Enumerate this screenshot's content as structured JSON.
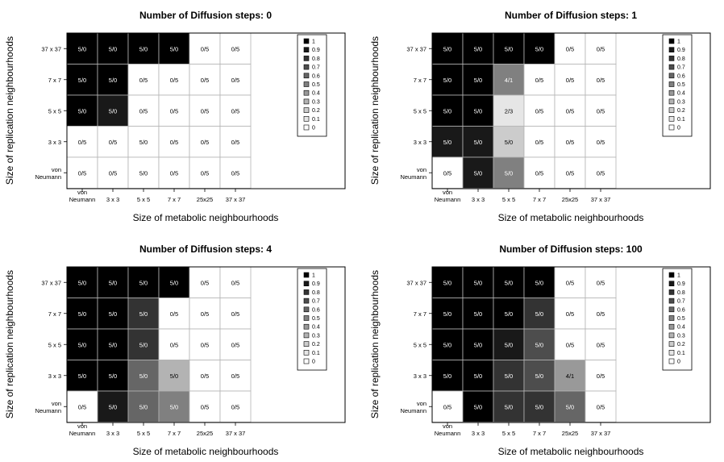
{
  "chart_data": [
    {
      "type": "heatmap",
      "title": "Number of Diffusion steps: 0",
      "xlabel": "Size of metabolic neighbourhoods",
      "ylabel": "Size of replication neighbourhoods",
      "x_categories": [
        "von\nNeumann",
        "3 x 3",
        "5 x 5",
        "7 x 7",
        "25x25",
        "37 x 37"
      ],
      "y_categories": [
        "37 x 37",
        "7 x 7",
        "5 x 5",
        "3 x 3",
        "von\nNeumann"
      ],
      "cells": [
        [
          {
            "label": "5/0",
            "value": 1
          },
          {
            "label": "5/0",
            "value": 1
          },
          {
            "label": "5/0",
            "value": 1
          },
          {
            "label": "5/0",
            "value": 1
          },
          {
            "label": "0/5",
            "value": 0
          },
          {
            "label": "0/5",
            "value": 0
          }
        ],
        [
          {
            "label": "5/0",
            "value": 1
          },
          {
            "label": "5/0",
            "value": 1
          },
          {
            "label": "0/5",
            "value": 0
          },
          {
            "label": "0/5",
            "value": 0
          },
          {
            "label": "0/5",
            "value": 0
          },
          {
            "label": "0/5",
            "value": 0
          }
        ],
        [
          {
            "label": "5/0",
            "value": 1
          },
          {
            "label": "5/0",
            "value": 0.9
          },
          {
            "label": "0/5",
            "value": 0
          },
          {
            "label": "0/5",
            "value": 0
          },
          {
            "label": "0/5",
            "value": 0
          },
          {
            "label": "0/5",
            "value": 0
          }
        ],
        [
          {
            "label": "0/5",
            "value": 0
          },
          {
            "label": "0/5",
            "value": 0
          },
          {
            "label": "5/0",
            "value": 0
          },
          {
            "label": "0/5",
            "value": 0
          },
          {
            "label": "0/5",
            "value": 0
          },
          {
            "label": "0/5",
            "value": 0
          }
        ],
        [
          {
            "label": "0/5",
            "value": 0
          },
          {
            "label": "0/5",
            "value": 0
          },
          {
            "label": "5/0",
            "value": 0
          },
          {
            "label": "0/5",
            "value": 0
          },
          {
            "label": "0/5",
            "value": 0
          },
          {
            "label": "0/5",
            "value": 0
          }
        ]
      ],
      "legend": [
        "1",
        "0.9",
        "0.8",
        "0.7",
        "0.6",
        "0.5",
        "0.4",
        "0.3",
        "0.2",
        "0.1",
        "0"
      ]
    },
    {
      "type": "heatmap",
      "title": "Number of Diffusion steps: 1",
      "xlabel": "Size of metabolic neighbourhoods",
      "ylabel": "Size of replication neighbourhoods",
      "x_categories": [
        "von\nNeumann",
        "3 x 3",
        "5 x 5",
        "7 x 7",
        "25x25",
        "37 x 37"
      ],
      "y_categories": [
        "37 x 37",
        "7 x 7",
        "5 x 5",
        "3 x 3",
        "von\nNeumann"
      ],
      "cells": [
        [
          {
            "label": "5/0",
            "value": 1
          },
          {
            "label": "5/0",
            "value": 1
          },
          {
            "label": "5/0",
            "value": 1
          },
          {
            "label": "5/0",
            "value": 1
          },
          {
            "label": "0/5",
            "value": 0
          },
          {
            "label": "0/5",
            "value": 0
          }
        ],
        [
          {
            "label": "5/0",
            "value": 1
          },
          {
            "label": "5/0",
            "value": 1
          },
          {
            "label": "4/1",
            "value": 0.5
          },
          {
            "label": "0/5",
            "value": 0
          },
          {
            "label": "0/5",
            "value": 0
          },
          {
            "label": "0/5",
            "value": 0
          }
        ],
        [
          {
            "label": "5/0",
            "value": 1
          },
          {
            "label": "5/0",
            "value": 1
          },
          {
            "label": "2/3",
            "value": 0.1
          },
          {
            "label": "0/5",
            "value": 0
          },
          {
            "label": "0/5",
            "value": 0
          },
          {
            "label": "0/5",
            "value": 0
          }
        ],
        [
          {
            "label": "5/0",
            "value": 0.9
          },
          {
            "label": "5/0",
            "value": 0.9
          },
          {
            "label": "5/0",
            "value": 0.2
          },
          {
            "label": "0/5",
            "value": 0
          },
          {
            "label": "0/5",
            "value": 0
          },
          {
            "label": "0/5",
            "value": 0
          }
        ],
        [
          {
            "label": "0/5",
            "value": 0
          },
          {
            "label": "5/0",
            "value": 0.9
          },
          {
            "label": "5/0",
            "value": 0.5
          },
          {
            "label": "0/5",
            "value": 0
          },
          {
            "label": "0/5",
            "value": 0
          },
          {
            "label": "0/5",
            "value": 0
          }
        ]
      ],
      "legend": [
        "1",
        "0.9",
        "0.8",
        "0.7",
        "0.6",
        "0.5",
        "0.4",
        "0.3",
        "0.2",
        "0.1",
        "0"
      ]
    },
    {
      "type": "heatmap",
      "title": "Number of Diffusion steps: 4",
      "xlabel": "Size of metabolic neighbourhoods",
      "ylabel": "Size of replication neighbourhoods",
      "x_categories": [
        "von\nNeumann",
        "3 x 3",
        "5 x 5",
        "7 x 7",
        "25x25",
        "37 x 37"
      ],
      "y_categories": [
        "37 x 37",
        "7 x 7",
        "5 x 5",
        "3 x 3",
        "von\nNeumann"
      ],
      "cells": [
        [
          {
            "label": "5/0",
            "value": 1
          },
          {
            "label": "5/0",
            "value": 1
          },
          {
            "label": "5/0",
            "value": 1
          },
          {
            "label": "5/0",
            "value": 1
          },
          {
            "label": "0/5",
            "value": 0
          },
          {
            "label": "0/5",
            "value": 0
          }
        ],
        [
          {
            "label": "5/0",
            "value": 1
          },
          {
            "label": "5/0",
            "value": 1
          },
          {
            "label": "5/0",
            "value": 0.8
          },
          {
            "label": "0/5",
            "value": 0
          },
          {
            "label": "0/5",
            "value": 0
          },
          {
            "label": "0/5",
            "value": 0
          }
        ],
        [
          {
            "label": "5/0",
            "value": 1
          },
          {
            "label": "5/0",
            "value": 1
          },
          {
            "label": "5/0",
            "value": 0.8
          },
          {
            "label": "0/5",
            "value": 0
          },
          {
            "label": "0/5",
            "value": 0
          },
          {
            "label": "0/5",
            "value": 0
          }
        ],
        [
          {
            "label": "5/0",
            "value": 1
          },
          {
            "label": "5/0",
            "value": 1
          },
          {
            "label": "5/0",
            "value": 0.6
          },
          {
            "label": "5/0",
            "value": 0.3
          },
          {
            "label": "0/5",
            "value": 0
          },
          {
            "label": "0/5",
            "value": 0
          }
        ],
        [
          {
            "label": "0/5",
            "value": 0
          },
          {
            "label": "5/0",
            "value": 0.9
          },
          {
            "label": "5/0",
            "value": 0.6
          },
          {
            "label": "5/0",
            "value": 0.5
          },
          {
            "label": "0/5",
            "value": 0
          },
          {
            "label": "0/5",
            "value": 0
          }
        ]
      ],
      "legend": [
        "1",
        "0.9",
        "0.8",
        "0.7",
        "0.6",
        "0.5",
        "0.4",
        "0.3",
        "0.2",
        "0.1",
        "0"
      ]
    },
    {
      "type": "heatmap",
      "title": "Number of Diffusion steps: 100",
      "xlabel": "Size of metabolic neighbourhoods",
      "ylabel": "Size of replication neighbourhoods",
      "x_categories": [
        "von\nNeumann",
        "3 x 3",
        "5 x 5",
        "7 x 7",
        "25x25",
        "37 x 37"
      ],
      "y_categories": [
        "37 x 37",
        "7 x 7",
        "5 x 5",
        "3 x 3",
        "von\nNeumann"
      ],
      "cells": [
        [
          {
            "label": "5/0",
            "value": 1
          },
          {
            "label": "5/0",
            "value": 1
          },
          {
            "label": "5/0",
            "value": 1
          },
          {
            "label": "5/0",
            "value": 1
          },
          {
            "label": "0/5",
            "value": 0
          },
          {
            "label": "0/5",
            "value": 0
          }
        ],
        [
          {
            "label": "5/0",
            "value": 1
          },
          {
            "label": "5/0",
            "value": 1
          },
          {
            "label": "5/0",
            "value": 1
          },
          {
            "label": "5/0",
            "value": 0.8
          },
          {
            "label": "0/5",
            "value": 0
          },
          {
            "label": "0/5",
            "value": 0
          }
        ],
        [
          {
            "label": "5/0",
            "value": 1
          },
          {
            "label": "5/0",
            "value": 1
          },
          {
            "label": "5/0",
            "value": 0.9
          },
          {
            "label": "5/0",
            "value": 0.7
          },
          {
            "label": "0/5",
            "value": 0
          },
          {
            "label": "0/5",
            "value": 0
          }
        ],
        [
          {
            "label": "5/0",
            "value": 1
          },
          {
            "label": "5/0",
            "value": 1
          },
          {
            "label": "5/0",
            "value": 0.8
          },
          {
            "label": "5/0",
            "value": 0.7
          },
          {
            "label": "4/1",
            "value": 0.4
          },
          {
            "label": "0/5",
            "value": 0
          }
        ],
        [
          {
            "label": "0/5",
            "value": 0
          },
          {
            "label": "5/0",
            "value": 1
          },
          {
            "label": "5/0",
            "value": 0.8
          },
          {
            "label": "5/0",
            "value": 0.8
          },
          {
            "label": "5/0",
            "value": 0.6
          },
          {
            "label": "0/5",
            "value": 0
          }
        ]
      ],
      "legend": [
        "1",
        "0.9",
        "0.8",
        "0.7",
        "0.6",
        "0.5",
        "0.4",
        "0.3",
        "0.2",
        "0.1",
        "0"
      ]
    }
  ]
}
